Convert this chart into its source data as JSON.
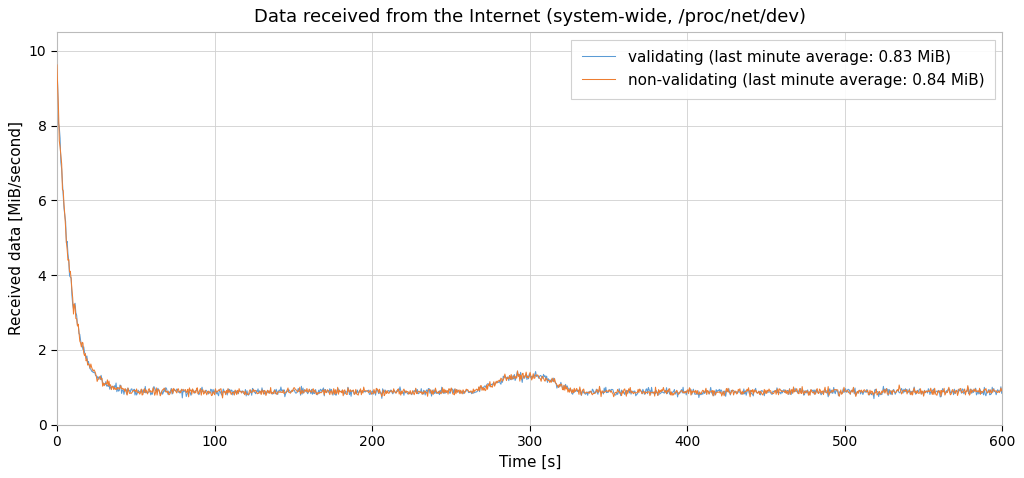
{
  "title": "Data received from the Internet (system-wide, /proc/net/dev)",
  "xlabel": "Time [s]",
  "ylabel": "Received data [MiB/second]",
  "xlim": [
    0,
    600
  ],
  "ylim": [
    0,
    10.5
  ],
  "yticks": [
    0,
    2,
    4,
    6,
    8,
    10
  ],
  "xticks": [
    0,
    100,
    200,
    300,
    400,
    500,
    600
  ],
  "legend_validating": "validating (last minute average: 0.83 MiB)",
  "legend_nonvalidating": "non-validating (last minute average: 0.84 MiB)",
  "color_validating": "#5B9BD5",
  "color_nonvalidating": "#ED7D31",
  "background_color": "#ffffff",
  "grid_color": "#d0d0d0",
  "title_fontsize": 13,
  "label_fontsize": 11,
  "tick_fontsize": 10,
  "legend_fontsize": 11,
  "peak_val": 9.35,
  "peak_val2": 9.4,
  "decay_rate": 0.12,
  "steady_state": 0.88,
  "n_points": 1200
}
